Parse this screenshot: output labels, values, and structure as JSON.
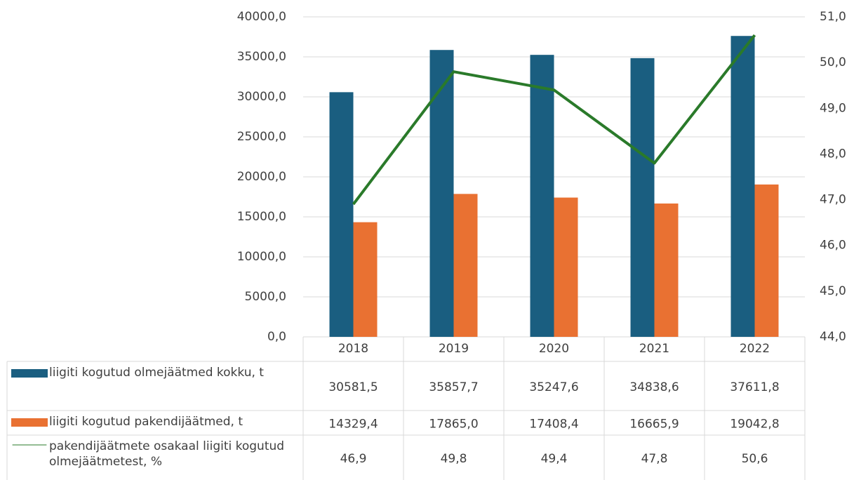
{
  "chart_data": {
    "type": "bar",
    "categories": [
      "2018",
      "2019",
      "2020",
      "2021",
      "2022"
    ],
    "series": [
      {
        "name": "liigiti kogutud olmejäätmed kokku, t",
        "color": "#1a5e80",
        "values": [
          30581.5,
          35857.7,
          35247.6,
          34838.6,
          37611.8
        ],
        "value_labels": [
          "30581,5",
          "35857,7",
          "35247,6",
          "34838,6",
          "37611,8"
        ]
      },
      {
        "name": "liigiti kogutud pakendijäätmed, t",
        "color": "#e97132",
        "values": [
          14329.4,
          17865.0,
          17408.4,
          16665.9,
          19042.8
        ],
        "value_labels": [
          "14329,4",
          "17865,0",
          "17408,4",
          "16665,9",
          "19042,8"
        ]
      },
      {
        "name": "pakendijäätmete osakaal liigiti kogutud olmejäätmetest, %",
        "color": "#2a7a2a",
        "type": "line",
        "axis": "y2",
        "values": [
          46.9,
          49.8,
          49.4,
          47.8,
          50.6
        ],
        "value_labels": [
          "46,9",
          "49,8",
          "49,4",
          "47,8",
          "50,6"
        ]
      }
    ],
    "ylim": [
      0,
      40000
    ],
    "yticks": [
      {
        "value": 0,
        "label": "0,0"
      },
      {
        "value": 5000,
        "label": "5000,0"
      },
      {
        "value": 10000,
        "label": "10000,0"
      },
      {
        "value": 15000,
        "label": "15000,0"
      },
      {
        "value": 20000,
        "label": "20000,0"
      },
      {
        "value": 25000,
        "label": "25000,0"
      },
      {
        "value": 30000,
        "label": "30000,0"
      },
      {
        "value": 35000,
        "label": "35000,0"
      },
      {
        "value": 40000,
        "label": "40000,0"
      }
    ],
    "y2lim": [
      44,
      51
    ],
    "y2ticks": [
      {
        "value": 44,
        "label": "44,0"
      },
      {
        "value": 45,
        "label": "45,0"
      },
      {
        "value": 46,
        "label": "46,0"
      },
      {
        "value": 47,
        "label": "47,0"
      },
      {
        "value": 48,
        "label": "48,0"
      },
      {
        "value": 49,
        "label": "49,0"
      },
      {
        "value": 50,
        "label": "50,0"
      },
      {
        "value": 51,
        "label": "51,0"
      }
    ],
    "grid": true
  }
}
